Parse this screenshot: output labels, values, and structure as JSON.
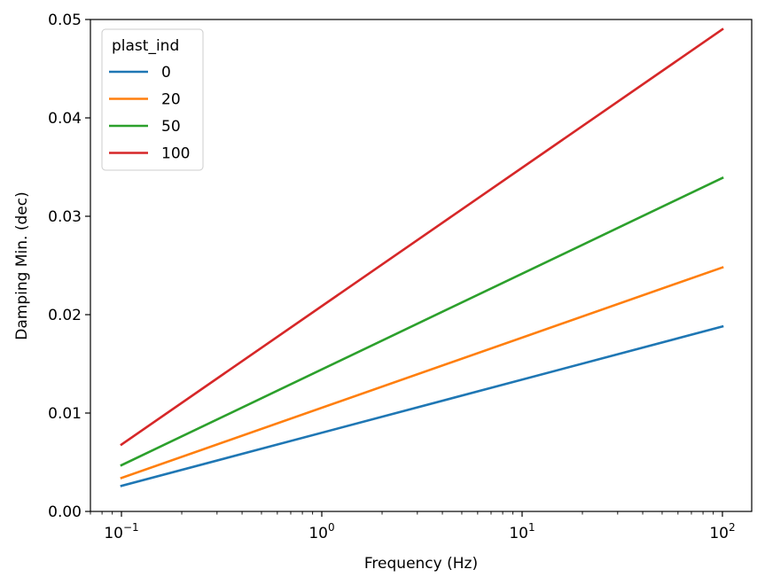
{
  "chart_data": {
    "type": "line",
    "xscale": "log",
    "xlabel": "Frequency (Hz)",
    "ylabel": "Damping Min. (dec)",
    "xlim": [
      0.07,
      140
    ],
    "ylim": [
      0,
      0.05
    ],
    "x_ticks": [
      {
        "value": 0.1,
        "base": "10",
        "exp": "−1"
      },
      {
        "value": 1,
        "base": "10",
        "exp": "0"
      },
      {
        "value": 10,
        "base": "10",
        "exp": "1"
      },
      {
        "value": 100,
        "base": "10",
        "exp": "2"
      }
    ],
    "y_ticks": [
      {
        "value": 0,
        "label": "0.00"
      },
      {
        "value": 0.01,
        "label": "0.01"
      },
      {
        "value": 0.02,
        "label": "0.02"
      },
      {
        "value": 0.03,
        "label": "0.03"
      },
      {
        "value": 0.04,
        "label": "0.04"
      },
      {
        "value": 0.05,
        "label": "0.05"
      }
    ],
    "grid": false,
    "legend": {
      "title": "plast_ind",
      "placement": "top-left"
    },
    "series": [
      {
        "name": "0",
        "color": "#1f77b4",
        "x": [
          0.1,
          100
        ],
        "y": [
          0.0026,
          0.0188
        ]
      },
      {
        "name": "20",
        "color": "#ff7f0e",
        "x": [
          0.1,
          100
        ],
        "y": [
          0.0034,
          0.0248
        ]
      },
      {
        "name": "50",
        "color": "#2ca02c",
        "x": [
          0.1,
          100
        ],
        "y": [
          0.0047,
          0.0339
        ]
      },
      {
        "name": "100",
        "color": "#d62728",
        "x": [
          0.1,
          100
        ],
        "y": [
          0.0068,
          0.049
        ]
      }
    ]
  }
}
